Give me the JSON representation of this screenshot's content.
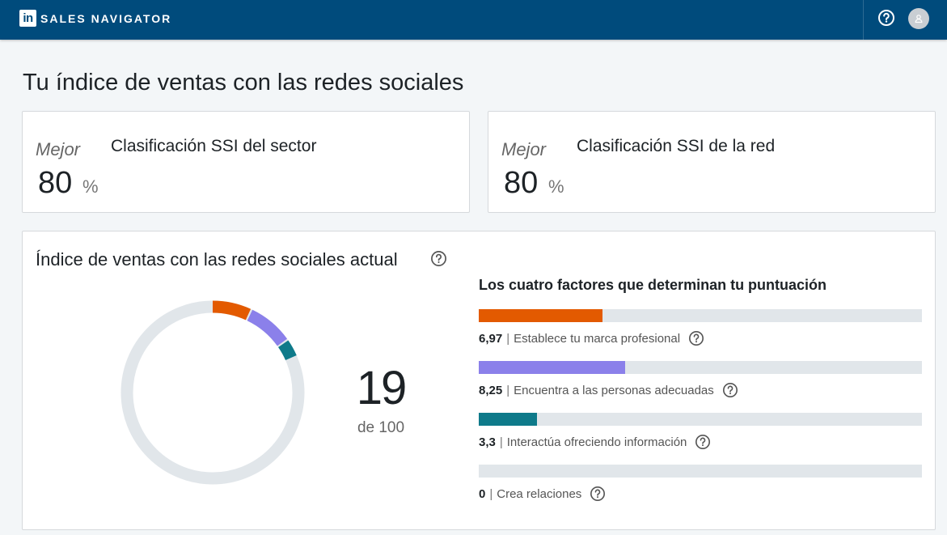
{
  "header": {
    "logo_mark": "in",
    "brand": "SALES NAVIGATOR",
    "help_icon": "question-circle-icon",
    "avatar_icon": "user-avatar-icon"
  },
  "page": {
    "title": "Tu índice de ventas con las redes sociales"
  },
  "rankings": [
    {
      "label": "Mejor",
      "title": "Clasificación SSI del sector",
      "value": "80",
      "unit": "%"
    },
    {
      "label": "Mejor",
      "title": "Clasificación SSI de la red",
      "value": "80",
      "unit": "%"
    }
  ],
  "ssi": {
    "title": "Índice de ventas con las redes sociales actual",
    "score": "19",
    "score_of": "de 100",
    "score_value": 19,
    "score_max": 100,
    "factors_title": "Los cuatro factores que determinan tu puntuación",
    "factor_max": 25,
    "factors": [
      {
        "value": "6,97",
        "numeric": 6.97,
        "label": "Establece tu marca profesional",
        "color": "#e35a00"
      },
      {
        "value": "8,25",
        "numeric": 8.25,
        "label": "Encuentra a las personas adecuadas",
        "color": "#8b80ea"
      },
      {
        "value": "3,3",
        "numeric": 3.3,
        "label": "Interactúa ofreciendo información",
        "color": "#0e7a8a"
      },
      {
        "value": "0",
        "numeric": 0,
        "label": "Crea relaciones",
        "color": "#4a8fd6"
      }
    ],
    "separator": "|",
    "track_color": "#e1e6ea"
  }
}
